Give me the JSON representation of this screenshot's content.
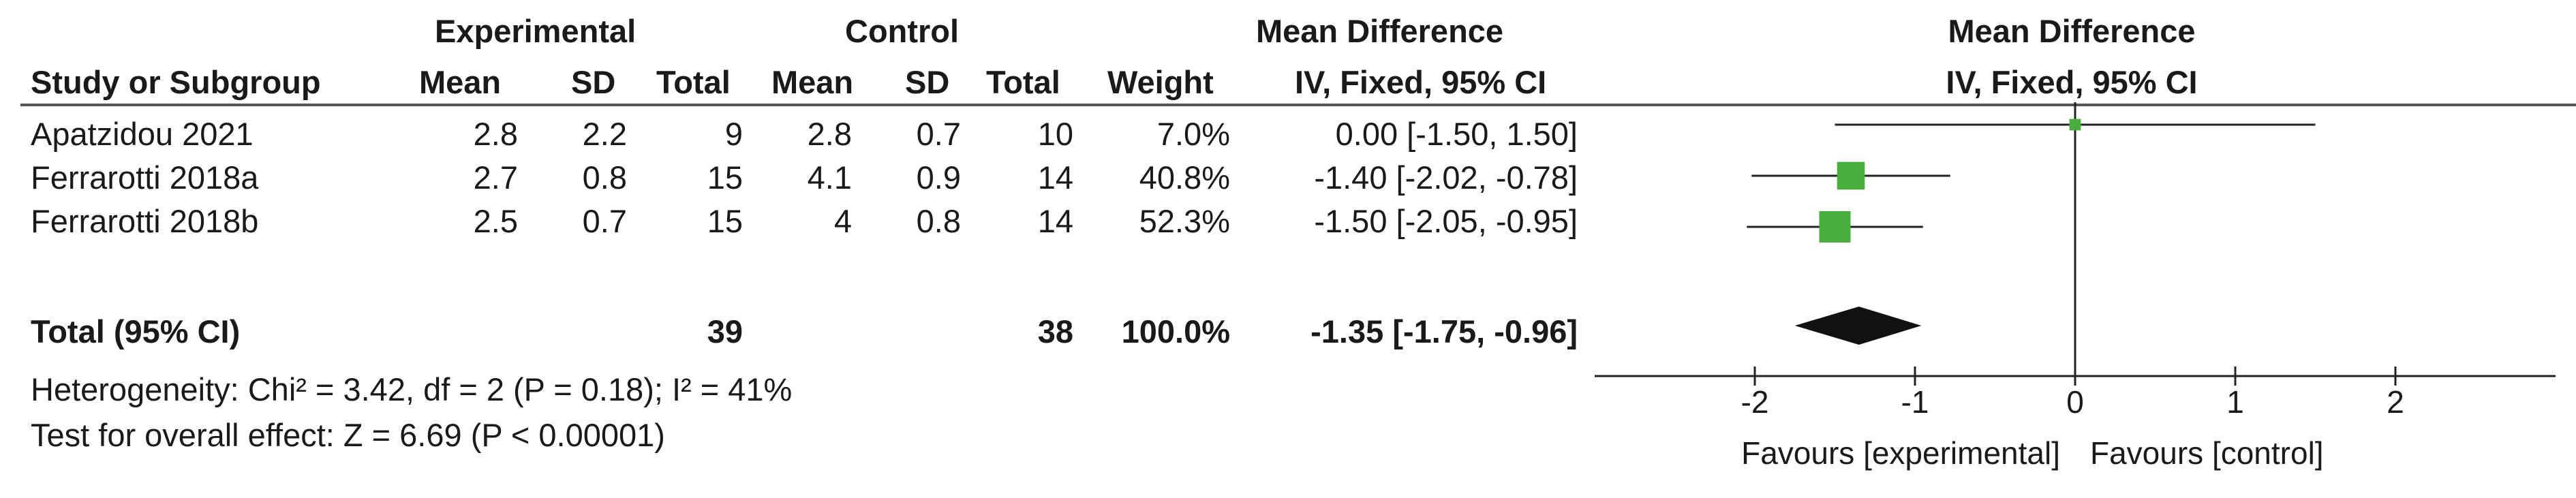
{
  "table": {
    "group_headers": {
      "experimental": "Experimental",
      "control": "Control",
      "mean_difference": "Mean Difference"
    },
    "column_headers": {
      "study": "Study or Subgroup",
      "exp_mean": "Mean",
      "exp_sd": "SD",
      "exp_total": "Total",
      "ctl_mean": "Mean",
      "ctl_sd": "SD",
      "ctl_total": "Total",
      "weight": "Weight",
      "md": "IV, Fixed, 95% CI"
    },
    "rows": [
      {
        "study": "Apatzidou 2021",
        "exp_mean": "2.8",
        "exp_sd": "2.2",
        "exp_total": "9",
        "ctl_mean": "2.8",
        "ctl_sd": "0.7",
        "ctl_total": "10",
        "weight": "7.0%",
        "md": "0.00 [-1.50, 1.50]"
      },
      {
        "study": "Ferrarotti 2018a",
        "exp_mean": "2.7",
        "exp_sd": "0.8",
        "exp_total": "15",
        "ctl_mean": "4.1",
        "ctl_sd": "0.9",
        "ctl_total": "14",
        "weight": "40.8%",
        "md": "-1.40 [-2.02, -0.78]"
      },
      {
        "study": "Ferrarotti 2018b",
        "exp_mean": "2.5",
        "exp_sd": "0.7",
        "exp_total": "15",
        "ctl_mean": "4",
        "ctl_sd": "0.8",
        "ctl_total": "14",
        "weight": "52.3%",
        "md": "-1.50 [-2.05, -0.95]"
      }
    ],
    "total": {
      "label": "Total (95% CI)",
      "exp_total": "39",
      "ctl_total": "38",
      "weight": "100.0%",
      "md": "-1.35 [-1.75, -0.96]"
    },
    "heterogeneity": "Heterogeneity: Chi² = 3.42, df = 2 (P = 0.18); I² = 41%",
    "overall_effect": "Test for overall effect: Z = 6.69 (P < 0.00001)"
  },
  "plot_headers": {
    "title": "Mean Difference",
    "subtitle": "IV, Fixed, 95% CI"
  },
  "chart_data": {
    "type": "forest",
    "title": "Mean Difference",
    "subtitle": "IV, Fixed, 95% CI",
    "xlim": [
      -3,
      3
    ],
    "xticks": [
      -2,
      -1,
      0,
      1,
      2
    ],
    "xtick_labels": [
      "-2",
      "-1",
      "0",
      "1",
      "2"
    ],
    "favours_left": "Favours [experimental]",
    "favours_right": "Favours [control]",
    "studies": [
      {
        "name": "Apatzidou 2021",
        "estimate": 0.0,
        "ci": [
          -1.5,
          1.5
        ],
        "weight": 7.0
      },
      {
        "name": "Ferrarotti 2018a",
        "estimate": -1.4,
        "ci": [
          -2.02,
          -0.78
        ],
        "weight": 40.8
      },
      {
        "name": "Ferrarotti 2018b",
        "estimate": -1.5,
        "ci": [
          -2.05,
          -0.95
        ],
        "weight": 52.3
      }
    ],
    "pooled": {
      "estimate": -1.35,
      "ci": [
        -1.75,
        -0.96
      ]
    },
    "marker_color": "#4aae3f",
    "diamond_color": "#111111"
  }
}
